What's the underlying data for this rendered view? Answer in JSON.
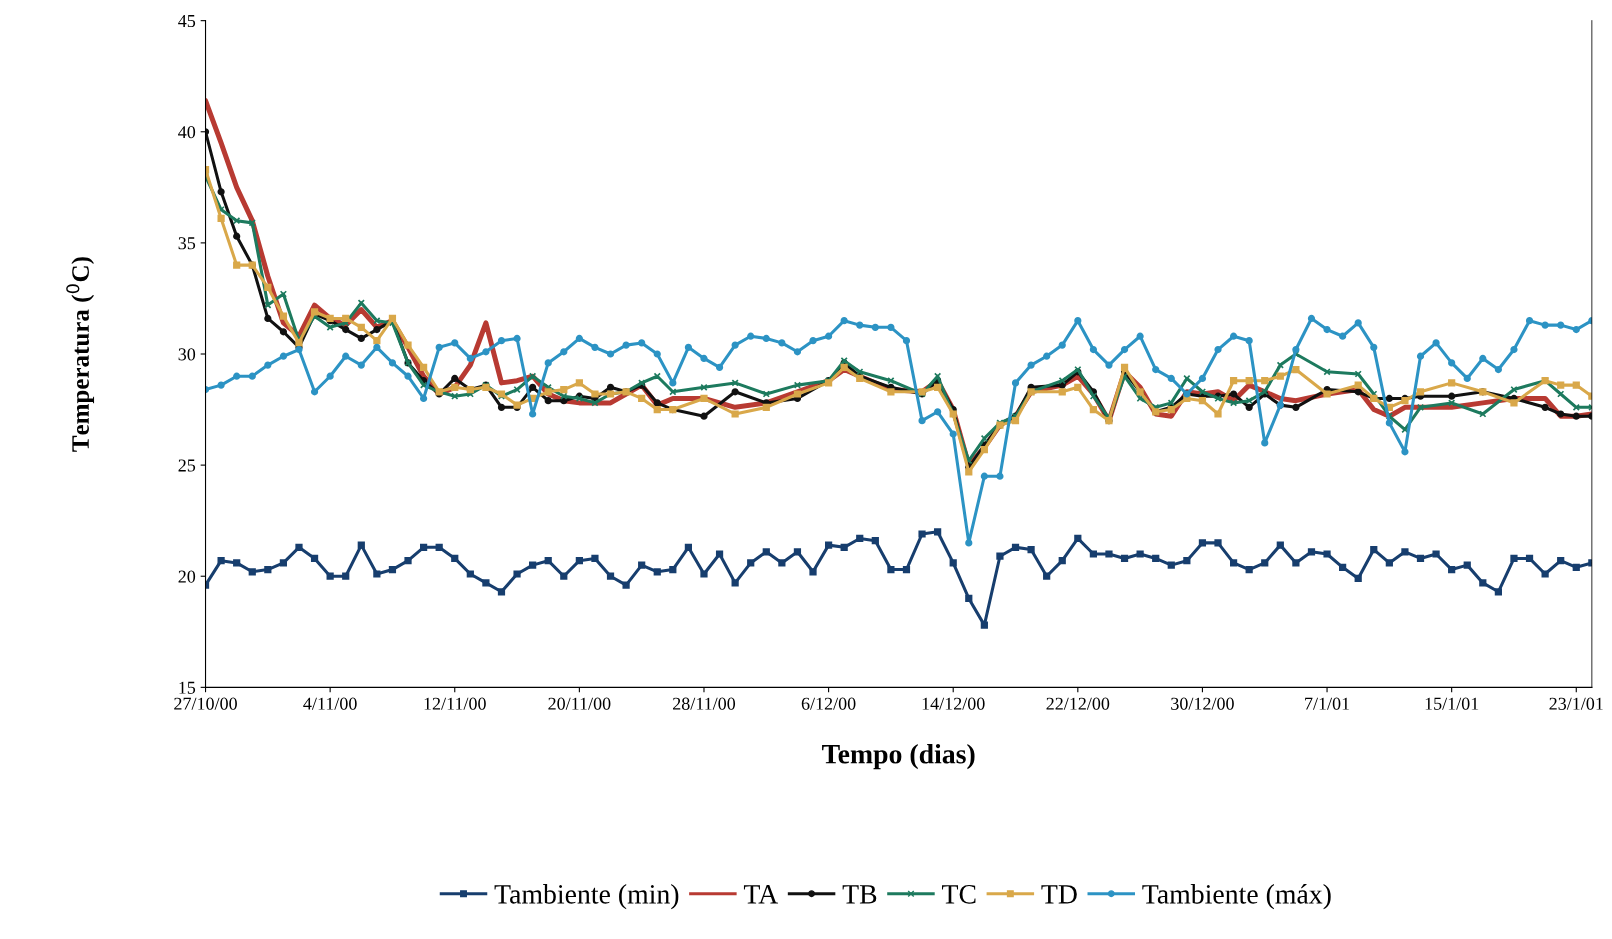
{
  "chart_data": {
    "type": "line",
    "xlabel": "Tempo (dias)",
    "ylabel": "Temperatura ($^{0}$C)",
    "xlim": [
      "2000-10-27",
      "2001-01-24"
    ],
    "ylim": [
      15,
      45
    ],
    "yticks": [
      15,
      20,
      25,
      30,
      35,
      40,
      45
    ],
    "xticks": [
      {
        "value": "2000-10-27",
        "label": "27/10/00"
      },
      {
        "value": "2000-11-04",
        "label": "4/11/00"
      },
      {
        "value": "2000-11-12",
        "label": "12/11/00"
      },
      {
        "value": "2000-11-20",
        "label": "20/11/00"
      },
      {
        "value": "2000-11-28",
        "label": "28/11/00"
      },
      {
        "value": "2000-12-06",
        "label": "6/12/00"
      },
      {
        "value": "2000-12-14",
        "label": "14/12/00"
      },
      {
        "value": "2000-12-22",
        "label": "22/12/00"
      },
      {
        "value": "2000-12-30",
        "label": "30/12/00"
      },
      {
        "value": "2001-01-07",
        "label": "7/1/01"
      },
      {
        "value": "2001-01-15",
        "label": "15/1/01"
      },
      {
        "value": "2001-01-23",
        "label": "23/1/01"
      }
    ],
    "grid": false,
    "legend": "bottom",
    "line_style": "solid",
    "x": [
      "2000-10-27",
      "2000-10-28",
      "2000-10-29",
      "2000-10-30",
      "2000-10-31",
      "2000-11-01",
      "2000-11-02",
      "2000-11-03",
      "2000-11-04",
      "2000-11-05",
      "2000-11-06",
      "2000-11-07",
      "2000-11-08",
      "2000-11-09",
      "2000-11-10",
      "2000-11-11",
      "2000-11-12",
      "2000-11-13",
      "2000-11-14",
      "2000-11-15",
      "2000-11-16",
      "2000-11-17",
      "2000-11-18",
      "2000-11-19",
      "2000-11-20",
      "2000-11-21",
      "2000-11-22",
      "2000-11-23",
      "2000-11-24",
      "2000-11-25",
      "2000-11-26",
      "2000-11-27",
      "2000-11-28",
      "2000-11-29",
      "2000-11-30",
      "2000-12-01",
      "2000-12-02",
      "2000-12-03",
      "2000-12-04",
      "2000-12-05",
      "2000-12-06",
      "2000-12-07",
      "2000-12-08",
      "2000-12-09",
      "2000-12-10",
      "2000-12-11",
      "2000-12-12",
      "2000-12-13",
      "2000-12-14",
      "2000-12-15",
      "2000-12-16",
      "2000-12-17",
      "2000-12-18",
      "2000-12-19",
      "2000-12-20",
      "2000-12-21",
      "2000-12-22",
      "2000-12-23",
      "2000-12-24",
      "2000-12-25",
      "2000-12-26",
      "2000-12-27",
      "2000-12-28",
      "2000-12-29",
      "2000-12-30",
      "2000-12-31",
      "2001-01-01",
      "2001-01-02",
      "2001-01-03",
      "2001-01-04",
      "2001-01-05",
      "2001-01-06",
      "2001-01-07",
      "2001-01-08",
      "2001-01-09",
      "2001-01-10",
      "2001-01-11",
      "2001-01-12",
      "2001-01-13",
      "2001-01-14",
      "2001-01-15",
      "2001-01-16",
      "2001-01-17",
      "2001-01-18",
      "2001-01-19",
      "2001-01-20",
      "2001-01-21",
      "2001-01-22",
      "2001-01-23",
      "2001-01-24"
    ],
    "series": [
      {
        "name": "Tambiente (min)",
        "color": "#173e6e",
        "marker": "square",
        "values": [
          19.6,
          20.7,
          20.6,
          20.2,
          20.3,
          20.6,
          21.3,
          20.8,
          20.0,
          20.0,
          21.4,
          20.1,
          20.3,
          20.7,
          21.3,
          21.3,
          20.8,
          20.1,
          19.7,
          19.3,
          20.1,
          20.5,
          20.7,
          20.0,
          20.7,
          20.8,
          20.0,
          19.6,
          20.5,
          20.2,
          20.3,
          21.3,
          20.1,
          21.0,
          19.7,
          20.6,
          21.1,
          20.6,
          21.1,
          20.2,
          21.4,
          21.3,
          21.7,
          21.6,
          20.3,
          20.3,
          21.9,
          22.0,
          20.6,
          19.0,
          17.8,
          20.9,
          21.3,
          21.2,
          20.0,
          20.7,
          21.7,
          21.0,
          21.0,
          20.8,
          21.0,
          20.8,
          20.5,
          20.7,
          21.5,
          21.5,
          20.6,
          20.3,
          20.6,
          21.4,
          20.6,
          21.1,
          21.0,
          20.4,
          19.9,
          21.2,
          20.6,
          21.1,
          20.8,
          21.0,
          20.3,
          20.5,
          19.7,
          19.3,
          20.8,
          20.8,
          20.1,
          20.7,
          20.4,
          20.6
        ]
      },
      {
        "name": "TA",
        "color": "#b83a32",
        "marker": "none",
        "x": [
          "2000-10-27",
          "2000-10-28",
          "2000-10-29",
          "2000-10-30",
          "2000-10-31",
          "2000-11-01",
          "2000-11-02",
          "2000-11-03",
          "2000-11-04",
          "2000-11-05",
          "2000-11-06",
          "2000-11-07",
          "2000-11-08",
          "2000-11-09",
          "2000-11-10",
          "2000-11-11",
          "2000-11-12",
          "2000-11-13",
          "2000-11-14",
          "2000-11-15",
          "2000-11-16",
          "2000-11-17",
          "2000-11-18",
          "2000-11-19",
          "2000-11-20",
          "2000-11-21",
          "2000-11-22",
          "2000-11-23",
          "2000-11-24",
          "2000-11-25",
          "2000-11-26",
          "2000-11-28",
          "2000-11-30",
          "2000-12-02",
          "2000-12-04",
          "2000-12-06",
          "2000-12-07",
          "2000-12-08",
          "2000-12-10",
          "2000-12-12",
          "2000-12-13",
          "2000-12-14",
          "2000-12-15",
          "2000-12-16",
          "2000-12-17",
          "2000-12-18",
          "2000-12-19",
          "2000-12-21",
          "2000-12-22",
          "2000-12-23",
          "2000-12-24",
          "2000-12-25",
          "2000-12-26",
          "2000-12-27",
          "2000-12-28",
          "2000-12-29",
          "2000-12-30",
          "2000-12-31",
          "2001-01-01",
          "2001-01-02",
          "2001-01-03",
          "2001-01-04",
          "2001-01-05",
          "2001-01-07",
          "2001-01-09",
          "2001-01-10",
          "2001-01-11",
          "2001-01-12",
          "2001-01-13",
          "2001-01-15",
          "2001-01-17",
          "2001-01-19",
          "2001-01-21",
          "2001-01-22",
          "2001-01-23",
          "2001-01-24"
        ],
        "values": [
          41.4,
          39.5,
          37.5,
          36.0,
          33.5,
          31.4,
          30.8,
          32.2,
          31.6,
          31.3,
          32.0,
          31.2,
          31.5,
          30.3,
          29.0,
          28.2,
          28.5,
          29.5,
          31.4,
          28.7,
          28.8,
          29.0,
          28.2,
          27.9,
          27.8,
          27.8,
          27.8,
          28.2,
          28.6,
          27.7,
          28.0,
          28.0,
          27.6,
          27.8,
          28.3,
          28.8,
          29.3,
          29.0,
          28.4,
          28.3,
          28.8,
          27.5,
          25.0,
          25.8,
          26.8,
          27.2,
          28.3,
          28.6,
          29.0,
          28.2,
          27.0,
          29.2,
          28.5,
          27.3,
          27.2,
          28.3,
          28.2,
          28.3,
          27.9,
          28.6,
          28.3,
          28.0,
          27.9,
          28.2,
          28.4,
          27.5,
          27.2,
          27.6,
          27.6,
          27.6,
          27.8,
          28.0,
          28.0,
          27.2,
          27.2,
          27.3
        ]
      },
      {
        "name": "TB",
        "color": "#111111",
        "marker": "circle",
        "x": [
          "2000-10-27",
          "2000-10-28",
          "2000-10-29",
          "2000-10-30",
          "2000-10-31",
          "2000-11-01",
          "2000-11-02",
          "2000-11-03",
          "2000-11-04",
          "2000-11-05",
          "2000-11-06",
          "2000-11-07",
          "2000-11-08",
          "2000-11-09",
          "2000-11-10",
          "2000-11-11",
          "2000-11-12",
          "2000-11-13",
          "2000-11-14",
          "2000-11-15",
          "2000-11-16",
          "2000-11-17",
          "2000-11-18",
          "2000-11-19",
          "2000-11-20",
          "2000-11-21",
          "2000-11-22",
          "2000-11-23",
          "2000-11-24",
          "2000-11-25",
          "2000-11-26",
          "2000-11-28",
          "2000-11-30",
          "2000-12-02",
          "2000-12-04",
          "2000-12-06",
          "2000-12-07",
          "2000-12-08",
          "2000-12-10",
          "2000-12-12",
          "2000-12-13",
          "2000-12-14",
          "2000-12-15",
          "2000-12-16",
          "2000-12-17",
          "2000-12-18",
          "2000-12-19",
          "2000-12-21",
          "2000-12-22",
          "2000-12-23",
          "2000-12-24",
          "2000-12-25",
          "2000-12-26",
          "2000-12-27",
          "2000-12-28",
          "2000-12-29",
          "2000-12-30",
          "2000-12-31",
          "2001-01-01",
          "2001-01-02",
          "2001-01-03",
          "2001-01-04",
          "2001-01-05",
          "2001-01-07",
          "2001-01-09",
          "2001-01-10",
          "2001-01-11",
          "2001-01-12",
          "2001-01-13",
          "2001-01-15",
          "2001-01-17",
          "2001-01-19",
          "2001-01-21",
          "2001-01-22",
          "2001-01-23",
          "2001-01-24"
        ],
        "values": [
          40.0,
          37.3,
          35.3,
          34.0,
          31.6,
          31.0,
          30.3,
          31.8,
          31.5,
          31.1,
          30.7,
          31.1,
          31.5,
          29.6,
          28.8,
          28.2,
          28.9,
          28.4,
          28.6,
          27.6,
          27.6,
          28.5,
          27.9,
          27.9,
          28.1,
          28.0,
          28.5,
          28.3,
          28.6,
          27.8,
          27.5,
          27.2,
          28.3,
          27.8,
          28.0,
          28.8,
          29.6,
          29.0,
          28.5,
          28.2,
          28.8,
          27.5,
          24.9,
          25.9,
          26.8,
          27.2,
          28.5,
          28.6,
          29.2,
          28.3,
          27.0,
          29.2,
          28.3,
          27.4,
          27.6,
          28.2,
          28.1,
          28.1,
          28.2,
          27.6,
          28.2,
          27.7,
          27.6,
          28.4,
          28.3,
          28.0,
          28.0,
          28.0,
          28.1,
          28.1,
          28.3,
          28.0,
          27.6,
          27.3,
          27.2,
          27.2
        ]
      },
      {
        "name": "TC",
        "color": "#1d7a5e",
        "marker": "cross",
        "x": [
          "2000-10-27",
          "2000-10-28",
          "2000-10-29",
          "2000-10-30",
          "2000-10-31",
          "2000-11-01",
          "2000-11-02",
          "2000-11-03",
          "2000-11-04",
          "2000-11-05",
          "2000-11-06",
          "2000-11-07",
          "2000-11-08",
          "2000-11-09",
          "2000-11-10",
          "2000-11-11",
          "2000-11-12",
          "2000-11-13",
          "2000-11-14",
          "2000-11-15",
          "2000-11-16",
          "2000-11-17",
          "2000-11-18",
          "2000-11-19",
          "2000-11-20",
          "2000-11-21",
          "2000-11-22",
          "2000-11-23",
          "2000-11-24",
          "2000-11-25",
          "2000-11-26",
          "2000-11-28",
          "2000-11-30",
          "2000-12-02",
          "2000-12-04",
          "2000-12-06",
          "2000-12-07",
          "2000-12-08",
          "2000-12-10",
          "2000-12-12",
          "2000-12-13",
          "2000-12-14",
          "2000-12-15",
          "2000-12-16",
          "2000-12-17",
          "2000-12-18",
          "2000-12-19",
          "2000-12-21",
          "2000-12-22",
          "2000-12-23",
          "2000-12-24",
          "2000-12-25",
          "2000-12-26",
          "2000-12-27",
          "2000-12-28",
          "2000-12-29",
          "2000-12-30",
          "2000-12-31",
          "2001-01-01",
          "2001-01-02",
          "2001-01-03",
          "2001-01-04",
          "2001-01-05",
          "2001-01-07",
          "2001-01-09",
          "2001-01-10",
          "2001-01-11",
          "2001-01-12",
          "2001-01-13",
          "2001-01-15",
          "2001-01-17",
          "2001-01-19",
          "2001-01-21",
          "2001-01-22",
          "2001-01-23",
          "2001-01-24"
        ],
        "values": [
          38.0,
          36.5,
          36.0,
          35.9,
          32.2,
          32.7,
          30.6,
          31.7,
          31.2,
          31.4,
          32.3,
          31.5,
          31.4,
          29.6,
          28.6,
          28.3,
          28.1,
          28.2,
          28.6,
          28.1,
          28.4,
          29.0,
          28.5,
          28.1,
          28.0,
          27.8,
          28.2,
          28.3,
          28.7,
          29.0,
          28.3,
          28.5,
          28.7,
          28.2,
          28.6,
          28.8,
          29.7,
          29.2,
          28.8,
          28.2,
          29.0,
          27.3,
          25.2,
          26.2,
          26.9,
          27.2,
          28.3,
          28.8,
          29.3,
          28.1,
          27.1,
          29.0,
          28.0,
          27.6,
          27.8,
          28.9,
          28.3,
          28.0,
          27.8,
          27.9,
          28.3,
          29.5,
          30.0,
          29.2,
          29.1,
          28.2,
          27.2,
          26.6,
          27.6,
          27.8,
          27.3,
          28.4,
          28.8,
          28.2,
          27.6,
          27.6
        ]
      },
      {
        "name": "TD",
        "color": "#d9a84a",
        "marker": "square",
        "x": [
          "2000-10-27",
          "2000-10-28",
          "2000-10-29",
          "2000-10-30",
          "2000-10-31",
          "2000-11-01",
          "2000-11-02",
          "2000-11-03",
          "2000-11-04",
          "2000-11-05",
          "2000-11-06",
          "2000-11-07",
          "2000-11-08",
          "2000-11-09",
          "2000-11-10",
          "2000-11-11",
          "2000-11-12",
          "2000-11-13",
          "2000-11-14",
          "2000-11-15",
          "2000-11-16",
          "2000-11-17",
          "2000-11-18",
          "2000-11-19",
          "2000-11-20",
          "2000-11-21",
          "2000-11-22",
          "2000-11-23",
          "2000-11-24",
          "2000-11-25",
          "2000-11-26",
          "2000-11-28",
          "2000-11-30",
          "2000-12-02",
          "2000-12-04",
          "2000-12-06",
          "2000-12-07",
          "2000-12-08",
          "2000-12-10",
          "2000-12-12",
          "2000-12-13",
          "2000-12-14",
          "2000-12-15",
          "2000-12-16",
          "2000-12-17",
          "2000-12-18",
          "2000-12-19",
          "2000-12-21",
          "2000-12-22",
          "2000-12-23",
          "2000-12-24",
          "2000-12-25",
          "2000-12-26",
          "2000-12-27",
          "2000-12-28",
          "2000-12-29",
          "2000-12-30",
          "2000-12-31",
          "2001-01-01",
          "2001-01-02",
          "2001-01-03",
          "2001-01-04",
          "2001-01-05",
          "2001-01-07",
          "2001-01-09",
          "2001-01-10",
          "2001-01-11",
          "2001-01-12",
          "2001-01-13",
          "2001-01-15",
          "2001-01-17",
          "2001-01-19",
          "2001-01-21",
          "2001-01-22",
          "2001-01-23",
          "2001-01-24"
        ],
        "values": [
          38.3,
          36.1,
          34.0,
          34.0,
          33.0,
          31.7,
          30.5,
          31.9,
          31.6,
          31.6,
          31.2,
          30.6,
          31.6,
          30.4,
          29.4,
          28.3,
          28.5,
          28.4,
          28.5,
          28.2,
          27.7,
          28.0,
          28.3,
          28.4,
          28.7,
          28.2,
          28.2,
          28.3,
          28.0,
          27.5,
          27.5,
          28.0,
          27.3,
          27.6,
          28.2,
          28.7,
          29.4,
          28.9,
          28.3,
          28.3,
          28.5,
          27.3,
          24.7,
          25.7,
          26.8,
          27.0,
          28.3,
          28.3,
          28.5,
          27.5,
          27.0,
          29.4,
          28.3,
          27.4,
          27.5,
          28.0,
          27.9,
          27.3,
          28.8,
          28.8,
          28.8,
          29.0,
          29.3,
          28.2,
          28.6,
          28.0,
          27.6,
          27.9,
          28.3,
          28.7,
          28.3,
          27.8,
          28.8,
          28.6,
          28.6,
          28.1
        ]
      },
      {
        "name": "Tambiente (máx)",
        "color": "#2c93c4",
        "marker": "circle",
        "values": [
          28.4,
          28.6,
          29.0,
          29.0,
          29.5,
          29.9,
          30.2,
          28.3,
          29.0,
          29.9,
          29.5,
          30.3,
          29.6,
          29.0,
          28.0,
          30.3,
          30.5,
          29.8,
          30.1,
          30.6,
          30.7,
          27.3,
          29.6,
          30.1,
          30.7,
          30.3,
          30.0,
          30.4,
          30.5,
          30.0,
          28.7,
          30.3,
          29.8,
          29.4,
          30.4,
          30.8,
          30.7,
          30.5,
          30.1,
          30.6,
          30.8,
          31.5,
          31.3,
          31.2,
          31.2,
          30.6,
          27.0,
          27.4,
          26.4,
          21.5,
          24.5,
          24.5,
          28.7,
          29.5,
          29.9,
          30.4,
          31.5,
          30.2,
          29.5,
          30.2,
          30.8,
          29.3,
          28.9,
          28.2,
          28.9,
          30.2,
          30.8,
          30.6,
          26.0,
          27.7,
          30.2,
          31.6,
          31.1,
          30.8,
          31.4,
          30.3,
          26.9,
          25.6,
          29.9,
          30.5,
          29.6,
          28.9,
          29.8,
          29.3,
          30.2,
          31.5,
          31.3,
          31.3,
          31.1,
          31.5
        ]
      }
    ]
  }
}
